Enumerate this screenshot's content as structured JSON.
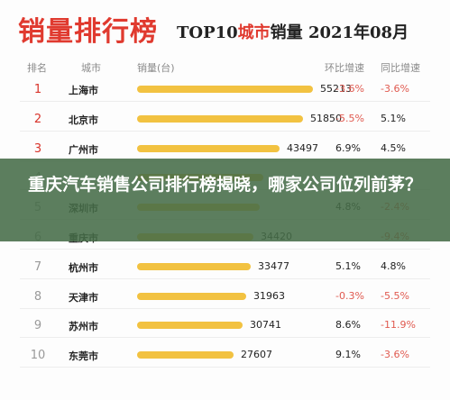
{
  "header": {
    "main_title": "销量排行榜",
    "subtitle_prefix": "TOP10",
    "subtitle_city": "城市",
    "subtitle_suffix": "销量 2021年08月"
  },
  "columns": {
    "rank": "排名",
    "city": "城市",
    "sales": "销量(台)",
    "mom": "环比增速",
    "yoy": "同比增速"
  },
  "colors": {
    "bar": "#f2c241",
    "accent": "#e03a2f",
    "top3": "#d8332a",
    "negative": "#e05a50"
  },
  "overlay": {
    "headline": "重庆汽车销售公司排行榜揭晓，哪家公司位列前茅？"
  },
  "chart_data": {
    "type": "bar",
    "orientation": "horizontal",
    "title": "TOP10城市销量 2021年08月",
    "xlim": [
      0,
      60000
    ],
    "grid": false,
    "legend": "none",
    "rows": [
      {
        "rank": "1",
        "city": "上海市",
        "value": 55213,
        "value_label": "55213",
        "mom": "-3.6%",
        "yoy": "-3.6%"
      },
      {
        "rank": "2",
        "city": "北京市",
        "value": 51850,
        "value_label": "51850",
        "mom": "-5.5%",
        "yoy": "5.1%"
      },
      {
        "rank": "3",
        "city": "广州市",
        "value": 43497,
        "value_label": "43497",
        "mom": "6.9%",
        "yoy": "4.5%"
      },
      {
        "rank": "4",
        "city": "",
        "value": 38000,
        "value_label": "",
        "mom": "",
        "yoy": ""
      },
      {
        "rank": "5",
        "city": "深圳市",
        "value": 36500,
        "value_label": "",
        "mom": "4.8%",
        "yoy": "-2.4%"
      },
      {
        "rank": "6",
        "city": "重庆市",
        "value": 34420,
        "value_label": "34420",
        "mom": "",
        "yoy": "-9.4%"
      },
      {
        "rank": "7",
        "city": "杭州市",
        "value": 33477,
        "value_label": "33477",
        "mom": "5.1%",
        "yoy": "4.8%"
      },
      {
        "rank": "8",
        "city": "天津市",
        "value": 31963,
        "value_label": "31963",
        "mom": "-0.3%",
        "yoy": "-5.5%"
      },
      {
        "rank": "9",
        "city": "苏州市",
        "value": 30741,
        "value_label": "30741",
        "mom": "8.6%",
        "yoy": "-11.9%"
      },
      {
        "rank": "10",
        "city": "东莞市",
        "value": 27607,
        "value_label": "27607",
        "mom": "9.1%",
        "yoy": "-3.6%"
      }
    ]
  }
}
